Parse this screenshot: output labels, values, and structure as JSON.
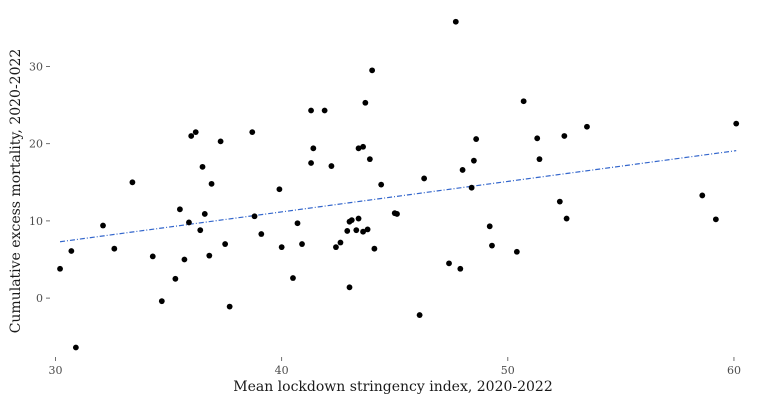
{
  "chart_data": {
    "type": "scatter",
    "title": "",
    "xlabel": "Mean lockdown stringency index, 2020-2022",
    "ylabel": "Cumulative excess mortality, 2020-2022",
    "xlim": [
      29.8,
      60.4
    ],
    "ylim": [
      -7.5,
      36.8
    ],
    "x_ticks": [
      30,
      40,
      50,
      60
    ],
    "y_ticks": [
      0,
      10,
      20,
      30
    ],
    "x_tick_labels": [
      "30",
      "40",
      "50",
      "60"
    ],
    "y_tick_labels": [
      "0",
      "10",
      "20",
      "30"
    ],
    "grid": false,
    "legend": "none",
    "point_color": "#000000",
    "trend_color": "#3366cc",
    "trendline": {
      "x": [
        30.2,
        60.1
      ],
      "y": [
        7.3,
        19.1
      ]
    },
    "points": [
      {
        "x": 30.2,
        "y": 3.8
      },
      {
        "x": 30.7,
        "y": 6.1
      },
      {
        "x": 30.9,
        "y": -6.4
      },
      {
        "x": 32.1,
        "y": 9.4
      },
      {
        "x": 32.6,
        "y": 6.4
      },
      {
        "x": 33.4,
        "y": 15.0
      },
      {
        "x": 34.3,
        "y": 5.4
      },
      {
        "x": 34.7,
        "y": -0.4
      },
      {
        "x": 35.3,
        "y": 2.5
      },
      {
        "x": 35.5,
        "y": 11.5
      },
      {
        "x": 35.7,
        "y": 5.0
      },
      {
        "x": 35.9,
        "y": 9.8
      },
      {
        "x": 36.0,
        "y": 21.0
      },
      {
        "x": 36.2,
        "y": 21.5
      },
      {
        "x": 36.4,
        "y": 8.8
      },
      {
        "x": 36.5,
        "y": 17.0
      },
      {
        "x": 36.6,
        "y": 10.9
      },
      {
        "x": 36.8,
        "y": 5.5
      },
      {
        "x": 36.9,
        "y": 14.8
      },
      {
        "x": 37.3,
        "y": 20.3
      },
      {
        "x": 37.5,
        "y": 7.0
      },
      {
        "x": 37.7,
        "y": -1.1
      },
      {
        "x": 38.7,
        "y": 21.5
      },
      {
        "x": 38.8,
        "y": 10.6
      },
      {
        "x": 39.1,
        "y": 8.3
      },
      {
        "x": 39.9,
        "y": 14.1
      },
      {
        "x": 40.0,
        "y": 6.6
      },
      {
        "x": 40.5,
        "y": 2.6
      },
      {
        "x": 40.7,
        "y": 9.7
      },
      {
        "x": 40.9,
        "y": 7.0
      },
      {
        "x": 41.3,
        "y": 17.5
      },
      {
        "x": 41.3,
        "y": 24.3
      },
      {
        "x": 41.4,
        "y": 19.4
      },
      {
        "x": 41.9,
        "y": 24.3
      },
      {
        "x": 42.2,
        "y": 17.1
      },
      {
        "x": 42.4,
        "y": 6.6
      },
      {
        "x": 42.6,
        "y": 7.2
      },
      {
        "x": 42.9,
        "y": 8.7
      },
      {
        "x": 43.0,
        "y": 9.9
      },
      {
        "x": 43.0,
        "y": 1.4
      },
      {
        "x": 43.1,
        "y": 10.1
      },
      {
        "x": 43.3,
        "y": 8.8
      },
      {
        "x": 43.4,
        "y": 10.3
      },
      {
        "x": 43.4,
        "y": 19.4
      },
      {
        "x": 43.6,
        "y": 19.6
      },
      {
        "x": 43.6,
        "y": 8.6
      },
      {
        "x": 43.7,
        "y": 25.3
      },
      {
        "x": 43.8,
        "y": 8.9
      },
      {
        "x": 43.9,
        "y": 18.0
      },
      {
        "x": 44.0,
        "y": 29.5
      },
      {
        "x": 44.1,
        "y": 6.4
      },
      {
        "x": 44.4,
        "y": 14.7
      },
      {
        "x": 45.0,
        "y": 11.0
      },
      {
        "x": 45.1,
        "y": 10.9
      },
      {
        "x": 46.1,
        "y": -2.2
      },
      {
        "x": 46.3,
        "y": 15.5
      },
      {
        "x": 47.4,
        "y": 4.5
      },
      {
        "x": 47.7,
        "y": 35.8
      },
      {
        "x": 47.9,
        "y": 3.8
      },
      {
        "x": 48.0,
        "y": 16.6
      },
      {
        "x": 48.4,
        "y": 14.3
      },
      {
        "x": 48.5,
        "y": 17.8
      },
      {
        "x": 48.6,
        "y": 20.6
      },
      {
        "x": 49.2,
        "y": 9.3
      },
      {
        "x": 49.3,
        "y": 6.8
      },
      {
        "x": 50.4,
        "y": 6.0
      },
      {
        "x": 50.7,
        "y": 25.5
      },
      {
        "x": 51.3,
        "y": 20.7
      },
      {
        "x": 51.4,
        "y": 18.0
      },
      {
        "x": 52.3,
        "y": 12.5
      },
      {
        "x": 52.5,
        "y": 21.0
      },
      {
        "x": 52.6,
        "y": 10.3
      },
      {
        "x": 53.5,
        "y": 22.2
      },
      {
        "x": 58.6,
        "y": 13.3
      },
      {
        "x": 59.2,
        "y": 10.2
      },
      {
        "x": 60.1,
        "y": 22.6
      }
    ]
  }
}
